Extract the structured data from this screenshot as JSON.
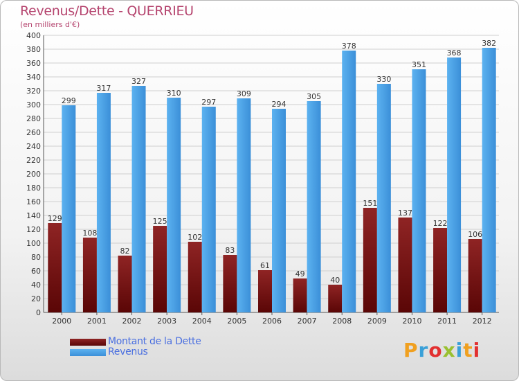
{
  "chart_data": {
    "type": "bar",
    "title": "Revenus/Dette - QUERRIEU",
    "subtitle": "(en milliers d'€)",
    "categories": [
      "2000",
      "2001",
      "2002",
      "2003",
      "2004",
      "2005",
      "2006",
      "2007",
      "2008",
      "2009",
      "2010",
      "2011",
      "2012"
    ],
    "series": [
      {
        "name": "Montant de la Dette",
        "color": "#7a1010",
        "values": [
          129,
          108,
          82,
          125,
          102,
          83,
          61,
          49,
          40,
          151,
          137,
          122,
          106
        ]
      },
      {
        "name": "Revenus",
        "color": "#4aa0e6",
        "values": [
          299,
          317,
          327,
          310,
          297,
          309,
          294,
          305,
          378,
          330,
          351,
          368,
          382
        ]
      }
    ],
    "ylim": [
      0,
      400
    ],
    "ytick_step": 20,
    "grid": true,
    "legend": "bottom-left"
  },
  "logo": {
    "letters": [
      "P",
      "r",
      "o",
      "x",
      "i",
      "t",
      "i"
    ],
    "colors": [
      "#f0a020",
      "#3aa0d8",
      "#e23030",
      "#9ac030",
      "#3aa0d8",
      "#f0a020",
      "#e23030"
    ]
  }
}
